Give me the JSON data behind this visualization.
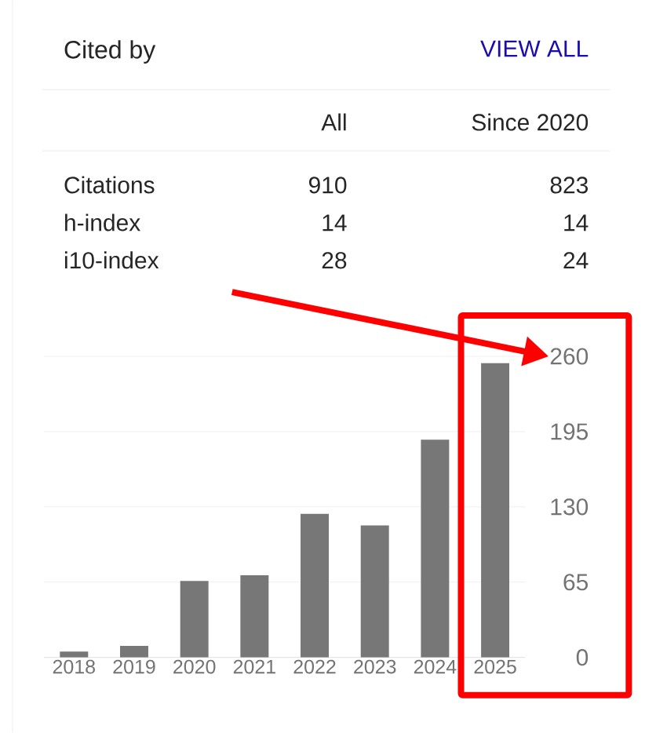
{
  "chart_data": {
    "type": "bar",
    "title": "Cited by",
    "annotations": [
      "VIEW ALL",
      "All",
      "Since 2020",
      "Citations",
      "910",
      "823",
      "h-index",
      "14",
      "14",
      "i10-index",
      "28",
      "24"
    ],
    "categories": [
      "2018",
      "2019",
      "2020",
      "2021",
      "2022",
      "2023",
      "2024",
      "2025"
    ],
    "values": [
      5,
      10,
      66,
      71,
      124,
      114,
      188,
      254
    ],
    "color": "#777777",
    "ylim": [
      0,
      260
    ],
    "yticks": [
      0,
      65,
      130,
      195,
      260
    ],
    "grid": "y"
  }
}
